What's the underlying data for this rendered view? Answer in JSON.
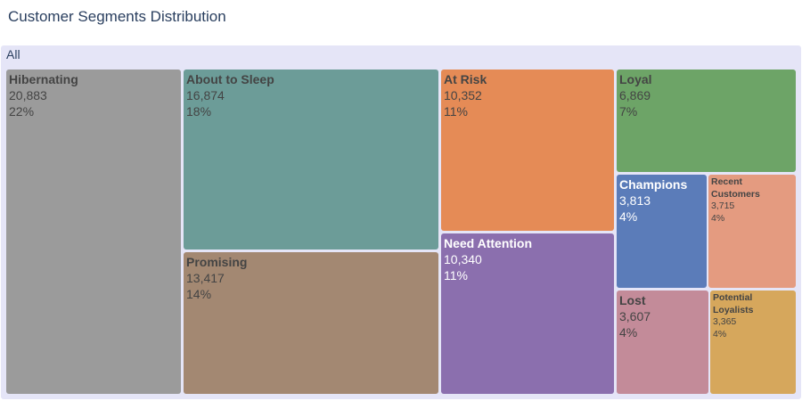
{
  "title": "Customer Segments Distribution",
  "root_label": "All",
  "chart_data": {
    "type": "treemap",
    "title": "Customer Segments Distribution",
    "root": "All",
    "segments": [
      {
        "name": "Hibernating",
        "value": 20883,
        "value_label": "20,883",
        "percent_label": "22%",
        "color": "#9b9b9b"
      },
      {
        "name": "About to Sleep",
        "value": 16874,
        "value_label": "16,874",
        "percent_label": "18%",
        "color": "#6c9c98"
      },
      {
        "name": "Promising",
        "value": 13417,
        "value_label": "13,417",
        "percent_label": "14%",
        "color": "#a38872"
      },
      {
        "name": "At Risk",
        "value": 10352,
        "value_label": "10,352",
        "percent_label": "11%",
        "color": "#e58b56"
      },
      {
        "name": "Need Attention",
        "value": 10340,
        "value_label": "10,340",
        "percent_label": "11%",
        "color": "#8b6fae"
      },
      {
        "name": "Loyal",
        "value": 6869,
        "value_label": "6,869",
        "percent_label": "7%",
        "color": "#6da467"
      },
      {
        "name": "Champions",
        "value": 3813,
        "value_label": "3,813",
        "percent_label": "4%",
        "color": "#5b7cb9"
      },
      {
        "name": "Recent Customers",
        "value": 3715,
        "value_label": "3,715",
        "percent_label": "4%",
        "color": "#e49b80"
      },
      {
        "name": "Lost",
        "value": 3607,
        "value_label": "3,607",
        "percent_label": "4%",
        "color": "#c38b99"
      },
      {
        "name": "Potential Loyalists",
        "value": 3365,
        "value_label": "3,365",
        "percent_label": "4%",
        "color": "#d6a75c"
      }
    ]
  }
}
